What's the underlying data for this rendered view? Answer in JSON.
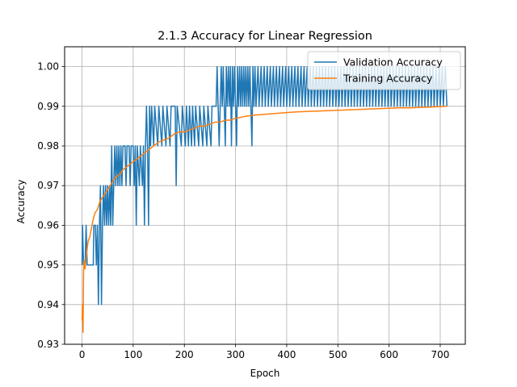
{
  "chart_data": {
    "type": "line",
    "title": "2.1.3 Accuracy for Linear Regression",
    "xlabel": "Epoch",
    "ylabel": "Accuracy",
    "xlim": [
      -34,
      749
    ],
    "ylim": [
      0.93,
      1.005
    ],
    "xticks": [
      0,
      100,
      200,
      300,
      400,
      500,
      600,
      700
    ],
    "yticks": [
      0.93,
      0.94,
      0.95,
      0.96,
      0.97,
      0.98,
      0.99,
      1.0
    ],
    "ytick_labels": [
      "0.93",
      "0.94",
      "0.95",
      "0.96",
      "0.97",
      "0.98",
      "0.99",
      "1.00"
    ],
    "grid": true,
    "legend_position": "top-right",
    "series": [
      {
        "name": "Validation Accuracy",
        "color": "#1f77b4",
        "points": [
          [
            0,
            0.95
          ],
          [
            1,
            0.96
          ],
          [
            3,
            0.95
          ],
          [
            6,
            0.95
          ],
          [
            8,
            0.96
          ],
          [
            10,
            0.95
          ],
          [
            15,
            0.95
          ],
          [
            22,
            0.95
          ],
          [
            23,
            0.96
          ],
          [
            26,
            0.96
          ],
          [
            28,
            0.95
          ],
          [
            30,
            0.96
          ],
          [
            32,
            0.94
          ],
          [
            34,
            0.96
          ],
          [
            36,
            0.97
          ],
          [
            38,
            0.94
          ],
          [
            40,
            0.96
          ],
          [
            42,
            0.97
          ],
          [
            44,
            0.96
          ],
          [
            46,
            0.97
          ],
          [
            48,
            0.96
          ],
          [
            50,
            0.97
          ],
          [
            52,
            0.96
          ],
          [
            54,
            0.97
          ],
          [
            56,
            0.96
          ],
          [
            58,
            0.98
          ],
          [
            60,
            0.96
          ],
          [
            62,
            0.97
          ],
          [
            64,
            0.98
          ],
          [
            66,
            0.97
          ],
          [
            68,
            0.98
          ],
          [
            70,
            0.97
          ],
          [
            72,
            0.98
          ],
          [
            74,
            0.97
          ],
          [
            76,
            0.98
          ],
          [
            78,
            0.97
          ],
          [
            80,
            0.98
          ],
          [
            84,
            0.98
          ],
          [
            86,
            0.97
          ],
          [
            88,
            0.98
          ],
          [
            92,
            0.98
          ],
          [
            94,
            0.97
          ],
          [
            96,
            0.98
          ],
          [
            100,
            0.98
          ],
          [
            102,
            0.97
          ],
          [
            104,
            0.98
          ],
          [
            106,
            0.96
          ],
          [
            108,
            0.98
          ],
          [
            112,
            0.97
          ],
          [
            114,
            0.98
          ],
          [
            118,
            0.97
          ],
          [
            120,
            0.98
          ],
          [
            122,
            0.96
          ],
          [
            124,
            0.98
          ],
          [
            126,
            0.99
          ],
          [
            128,
            0.98
          ],
          [
            130,
            0.96
          ],
          [
            132,
            0.99
          ],
          [
            134,
            0.98
          ],
          [
            136,
            0.99
          ],
          [
            140,
            0.98
          ],
          [
            142,
            0.99
          ],
          [
            148,
            0.98
          ],
          [
            150,
            0.99
          ],
          [
            156,
            0.98
          ],
          [
            158,
            0.99
          ],
          [
            164,
            0.98
          ],
          [
            166,
            0.99
          ],
          [
            172,
            0.98
          ],
          [
            174,
            0.99
          ],
          [
            182,
            0.99
          ],
          [
            184,
            0.97
          ],
          [
            186,
            0.99
          ],
          [
            194,
            0.98
          ],
          [
            196,
            0.99
          ],
          [
            202,
            0.98
          ],
          [
            204,
            0.99
          ],
          [
            208,
            0.98
          ],
          [
            210,
            0.99
          ],
          [
            214,
            0.98
          ],
          [
            216,
            0.99
          ],
          [
            220,
            0.98
          ],
          [
            222,
            0.99
          ],
          [
            228,
            0.98
          ],
          [
            230,
            0.99
          ],
          [
            236,
            0.98
          ],
          [
            238,
            0.99
          ],
          [
            244,
            0.98
          ],
          [
            246,
            0.99
          ],
          [
            252,
            0.98
          ],
          [
            254,
            0.99
          ],
          [
            262,
            0.99
          ],
          [
            264,
            1.0
          ],
          [
            266,
            0.99
          ],
          [
            268,
            0.98
          ],
          [
            270,
            0.99
          ],
          [
            272,
            1.0
          ],
          [
            274,
            0.99
          ],
          [
            276,
            1.0
          ],
          [
            278,
            0.99
          ],
          [
            280,
            0.98
          ],
          [
            282,
            1.0
          ],
          [
            284,
            0.99
          ],
          [
            286,
            1.0
          ],
          [
            288,
            0.99
          ],
          [
            290,
            1.0
          ],
          [
            292,
            0.98
          ],
          [
            294,
            1.0
          ],
          [
            296,
            0.99
          ],
          [
            298,
            1.0
          ],
          [
            300,
            0.99
          ],
          [
            302,
            0.98
          ],
          [
            304,
            1.0
          ],
          [
            306,
            0.99
          ],
          [
            308,
            1.0
          ],
          [
            310,
            0.99
          ],
          [
            312,
            1.0
          ],
          [
            314,
            0.99
          ],
          [
            316,
            1.0
          ],
          [
            318,
            0.99
          ],
          [
            320,
            1.0
          ],
          [
            322,
            0.99
          ],
          [
            324,
            1.0
          ],
          [
            326,
            0.99
          ],
          [
            328,
            1.0
          ],
          [
            330,
            0.99
          ],
          [
            332,
            0.98
          ],
          [
            334,
            1.0
          ],
          [
            336,
            0.99
          ],
          [
            338,
            1.0
          ],
          [
            340,
            0.99
          ],
          [
            344,
            1.0
          ],
          [
            346,
            0.99
          ],
          [
            350,
            1.0
          ],
          [
            352,
            0.99
          ],
          [
            356,
            1.0
          ],
          [
            358,
            0.99
          ],
          [
            362,
            1.0
          ],
          [
            364,
            0.99
          ],
          [
            368,
            1.0
          ],
          [
            370,
            0.99
          ],
          [
            374,
            1.0
          ],
          [
            376,
            0.99
          ],
          [
            380,
            1.0
          ],
          [
            382,
            0.99
          ],
          [
            386,
            1.0
          ],
          [
            388,
            0.99
          ],
          [
            392,
            1.0
          ],
          [
            394,
            0.99
          ],
          [
            398,
            1.0
          ],
          [
            400,
            0.99
          ],
          [
            404,
            1.0
          ],
          [
            406,
            0.99
          ],
          [
            410,
            1.0
          ],
          [
            412,
            0.99
          ],
          [
            416,
            1.0
          ],
          [
            418,
            0.99
          ],
          [
            422,
            1.0
          ],
          [
            424,
            0.99
          ],
          [
            428,
            1.0
          ],
          [
            430,
            0.99
          ],
          [
            434,
            1.0
          ],
          [
            436,
            0.99
          ],
          [
            440,
            1.0
          ],
          [
            442,
            0.99
          ],
          [
            446,
            1.0
          ],
          [
            448,
            0.99
          ],
          [
            452,
            1.0
          ],
          [
            454,
            0.99
          ],
          [
            458,
            1.0
          ],
          [
            460,
            0.99
          ],
          [
            464,
            1.0
          ],
          [
            466,
            0.99
          ],
          [
            470,
            1.0
          ],
          [
            472,
            0.99
          ],
          [
            476,
            1.0
          ],
          [
            478,
            0.99
          ],
          [
            482,
            1.0
          ],
          [
            484,
            0.99
          ],
          [
            488,
            1.0
          ],
          [
            490,
            0.99
          ],
          [
            494,
            1.0
          ],
          [
            496,
            0.99
          ],
          [
            500,
            1.0
          ],
          [
            502,
            0.99
          ],
          [
            506,
            1.0
          ],
          [
            508,
            0.99
          ],
          [
            512,
            1.0
          ],
          [
            514,
            0.99
          ],
          [
            518,
            1.0
          ],
          [
            520,
            0.99
          ],
          [
            524,
            1.0
          ],
          [
            526,
            0.99
          ],
          [
            530,
            1.0
          ],
          [
            532,
            0.99
          ],
          [
            536,
            1.0
          ],
          [
            538,
            0.99
          ],
          [
            542,
            1.0
          ],
          [
            544,
            0.99
          ],
          [
            548,
            1.0
          ],
          [
            550,
            0.99
          ],
          [
            554,
            1.0
          ],
          [
            556,
            0.99
          ],
          [
            560,
            1.0
          ],
          [
            562,
            0.99
          ],
          [
            566,
            1.0
          ],
          [
            568,
            0.99
          ],
          [
            572,
            1.0
          ],
          [
            574,
            0.99
          ],
          [
            578,
            1.0
          ],
          [
            580,
            0.99
          ],
          [
            584,
            1.0
          ],
          [
            586,
            0.99
          ],
          [
            590,
            1.0
          ],
          [
            592,
            0.99
          ],
          [
            596,
            1.0
          ],
          [
            598,
            0.99
          ],
          [
            602,
            1.0
          ],
          [
            604,
            0.99
          ],
          [
            608,
            1.0
          ],
          [
            610,
            0.99
          ],
          [
            614,
            1.0
          ],
          [
            616,
            0.99
          ],
          [
            620,
            1.0
          ],
          [
            622,
            0.99
          ],
          [
            626,
            1.0
          ],
          [
            628,
            0.99
          ],
          [
            632,
            1.0
          ],
          [
            634,
            0.99
          ],
          [
            638,
            1.0
          ],
          [
            640,
            0.99
          ],
          [
            644,
            1.0
          ],
          [
            646,
            0.99
          ],
          [
            650,
            1.0
          ],
          [
            652,
            0.99
          ],
          [
            656,
            1.0
          ],
          [
            658,
            0.99
          ],
          [
            662,
            1.0
          ],
          [
            664,
            0.99
          ],
          [
            668,
            1.0
          ],
          [
            670,
            0.99
          ],
          [
            674,
            1.0
          ],
          [
            676,
            0.99
          ],
          [
            680,
            1.0
          ],
          [
            682,
            0.99
          ],
          [
            686,
            1.0
          ],
          [
            688,
            0.99
          ],
          [
            692,
            1.0
          ],
          [
            694,
            0.99
          ],
          [
            698,
            1.0
          ],
          [
            700,
            0.99
          ],
          [
            704,
            1.0
          ],
          [
            706,
            0.99
          ],
          [
            710,
            1.0
          ],
          [
            713,
            0.99
          ]
        ]
      },
      {
        "name": "Training Accuracy",
        "color": "#ff7f0e",
        "points": [
          [
            0,
            0.936
          ],
          [
            1,
            0.94
          ],
          [
            2,
            0.933
          ],
          [
            3,
            0.948
          ],
          [
            4,
            0.951
          ],
          [
            6,
            0.949
          ],
          [
            8,
            0.952
          ],
          [
            10,
            0.954
          ],
          [
            12,
            0.956
          ],
          [
            15,
            0.957
          ],
          [
            18,
            0.959
          ],
          [
            21,
            0.961
          ],
          [
            25,
            0.963
          ],
          [
            30,
            0.964
          ],
          [
            35,
            0.966
          ],
          [
            40,
            0.967
          ],
          [
            45,
            0.968
          ],
          [
            50,
            0.969
          ],
          [
            55,
            0.97
          ],
          [
            60,
            0.971
          ],
          [
            65,
            0.972
          ],
          [
            70,
            0.9725
          ],
          [
            75,
            0.973
          ],
          [
            80,
            0.974
          ],
          [
            90,
            0.975
          ],
          [
            100,
            0.976
          ],
          [
            110,
            0.977
          ],
          [
            120,
            0.978
          ],
          [
            130,
            0.979
          ],
          [
            140,
            0.98
          ],
          [
            150,
            0.981
          ],
          [
            160,
            0.9815
          ],
          [
            170,
            0.982
          ],
          [
            180,
            0.983
          ],
          [
            190,
            0.9835
          ],
          [
            200,
            0.9835
          ],
          [
            210,
            0.984
          ],
          [
            220,
            0.9845
          ],
          [
            230,
            0.985
          ],
          [
            240,
            0.985
          ],
          [
            250,
            0.9855
          ],
          [
            260,
            0.986
          ],
          [
            270,
            0.986
          ],
          [
            280,
            0.9865
          ],
          [
            290,
            0.9865
          ],
          [
            300,
            0.987
          ],
          [
            310,
            0.9872
          ],
          [
            320,
            0.9875
          ],
          [
            340,
            0.9878
          ],
          [
            360,
            0.988
          ],
          [
            380,
            0.9882
          ],
          [
            400,
            0.9884
          ],
          [
            420,
            0.9886
          ],
          [
            440,
            0.9887
          ],
          [
            460,
            0.9888
          ],
          [
            480,
            0.9889
          ],
          [
            500,
            0.989
          ],
          [
            520,
            0.9891
          ],
          [
            540,
            0.9892
          ],
          [
            560,
            0.9893
          ],
          [
            580,
            0.9894
          ],
          [
            600,
            0.9895
          ],
          [
            620,
            0.9896
          ],
          [
            640,
            0.9896
          ],
          [
            660,
            0.9897
          ],
          [
            680,
            0.9898
          ],
          [
            700,
            0.9899
          ],
          [
            713,
            0.99
          ]
        ]
      }
    ]
  }
}
